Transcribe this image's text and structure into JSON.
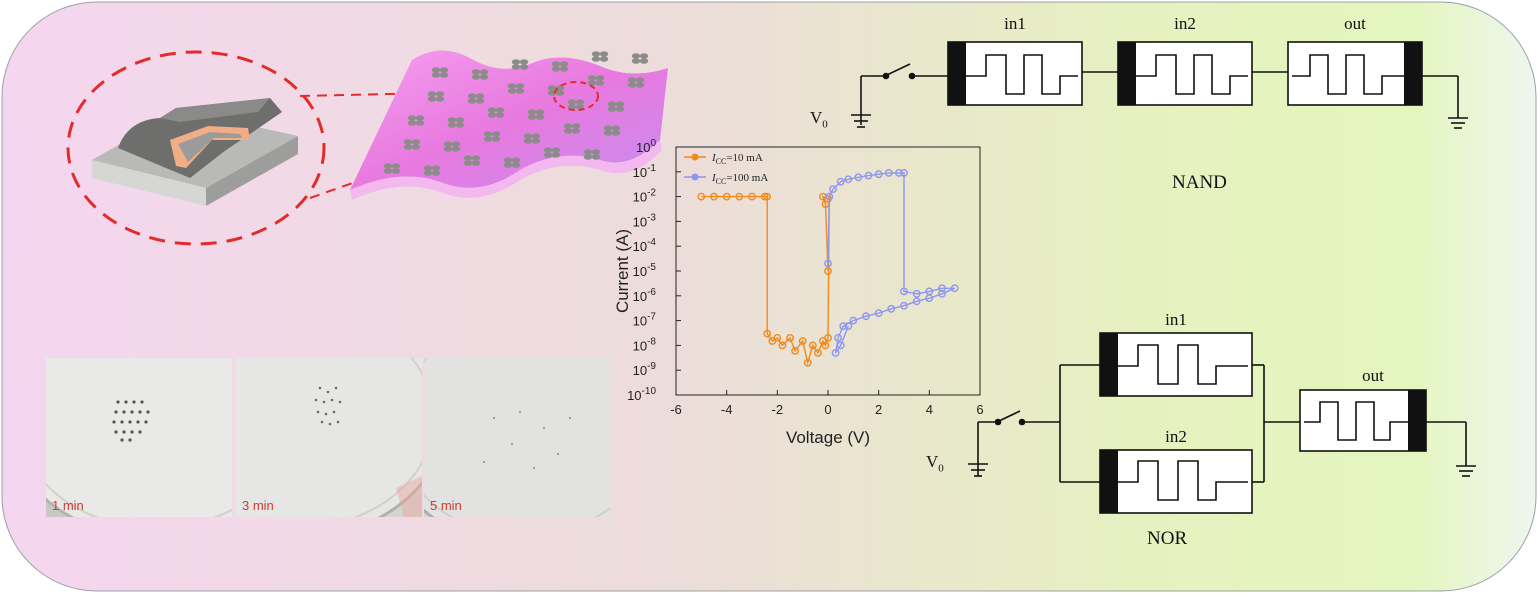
{
  "photos": [
    {
      "label": "1 min"
    },
    {
      "label": "3 min"
    },
    {
      "label": "5 min"
    }
  ],
  "nand": {
    "title": "NAND",
    "gates": [
      "in1",
      "in2",
      "out"
    ],
    "source": "V",
    "source_sub": "0"
  },
  "nor": {
    "title": "NOR",
    "gates": [
      "in1",
      "in2",
      "out"
    ],
    "source": "V",
    "source_sub": "0"
  },
  "colors": {
    "orange_series": "#f08a1e",
    "blue_series": "#8e96f0",
    "accent_red": "#e32b2b",
    "substrate_pink": "#ee84e6"
  },
  "chart_data": {
    "type": "line",
    "xlabel": "Voltage (V)",
    "ylabel": "Current (A)",
    "xlim": [
      -6,
      6
    ],
    "ylim_log10": [
      -10,
      0
    ],
    "yscale": "log",
    "x_ticks": [
      "-6",
      "-4",
      "-2",
      "0",
      "2",
      "4",
      "6"
    ],
    "y_tick_exponents": [
      "0",
      "-1",
      "-2",
      "-3",
      "-4",
      "-5",
      "-6",
      "-7",
      "-8",
      "-9",
      "-10"
    ],
    "legend_position": "top-left",
    "series": [
      {
        "name": "I_CC=10 mA",
        "legend_main": "I",
        "legend_sub": "CC",
        "legend_rest": "=10 mA",
        "color": "#f08a1e",
        "points": [
          [
            -5.0,
            0.01
          ],
          [
            -4.5,
            0.01
          ],
          [
            -4.0,
            0.01
          ],
          [
            -3.5,
            0.01
          ],
          [
            -3.0,
            0.01
          ],
          [
            -2.5,
            0.01
          ],
          [
            -2.4,
            0.01
          ],
          [
            -2.4,
            3e-08
          ],
          [
            -2.2,
            1.5e-08
          ],
          [
            -2.0,
            2e-08
          ],
          [
            -1.8,
            1e-08
          ],
          [
            -1.5,
            2e-08
          ],
          [
            -1.3,
            6e-09
          ],
          [
            -1.0,
            1.5e-08
          ],
          [
            -0.8,
            2e-09
          ],
          [
            -0.6,
            1e-08
          ],
          [
            -0.4,
            5e-09
          ],
          [
            -0.2,
            1.5e-08
          ],
          [
            -0.1,
            1e-08
          ],
          [
            0.0,
            2e-08
          ],
          [
            0.05,
            0.01
          ],
          [
            0.0,
            0.008
          ],
          [
            -0.2,
            0.01
          ],
          [
            -0.1,
            0.005
          ],
          [
            0.0,
            1e-05
          ]
        ]
      },
      {
        "name": "I_CC=100 mA",
        "legend_main": "I",
        "legend_sub": "CC",
        "legend_rest": "=100 mA",
        "color": "#8e96f0",
        "points": [
          [
            0.0,
            2e-05
          ],
          [
            0.05,
            0.01
          ],
          [
            0.2,
            0.02
          ],
          [
            0.5,
            0.04
          ],
          [
            0.8,
            0.05
          ],
          [
            1.2,
            0.06
          ],
          [
            1.6,
            0.07
          ],
          [
            2.0,
            0.08
          ],
          [
            2.4,
            0.09
          ],
          [
            2.8,
            0.09
          ],
          [
            3.0,
            0.09
          ],
          [
            3.0,
            1.5e-06
          ],
          [
            3.5,
            1.2e-06
          ],
          [
            4.0,
            1.5e-06
          ],
          [
            4.5,
            2e-06
          ],
          [
            5.0,
            2e-06
          ],
          [
            4.5,
            1.2e-06
          ],
          [
            4.0,
            8e-07
          ],
          [
            3.5,
            6e-07
          ],
          [
            3.0,
            4e-07
          ],
          [
            2.5,
            3e-07
          ],
          [
            2.0,
            2e-07
          ],
          [
            1.5,
            1.5e-07
          ],
          [
            1.0,
            1e-07
          ],
          [
            0.6,
            6e-08
          ],
          [
            0.4,
            2e-08
          ],
          [
            0.3,
            5e-09
          ],
          [
            0.5,
            1e-08
          ],
          [
            0.8,
            6e-08
          ]
        ]
      }
    ]
  }
}
